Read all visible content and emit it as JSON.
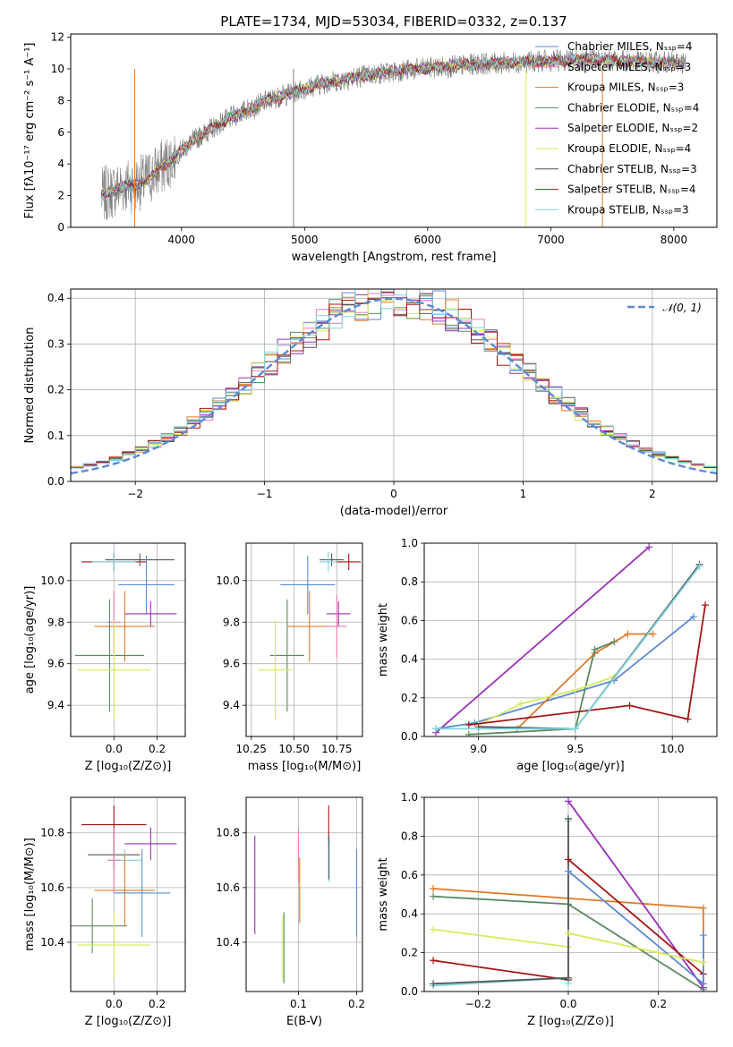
{
  "colors": {
    "chabrier_miles": "#5b8ad6",
    "salpeter_miles": "#f07ab2",
    "kroupa_miles": "#e07b29",
    "chabrier_elodie": "#5a8a62",
    "salpeter_elodie": "#9b30b8",
    "kroupa_elodie": "#d8ea5c",
    "chabrier_stelib": "#555555",
    "salpeter_stelib": "#a51515",
    "kroupa_stelib": "#7fd6e0",
    "spectrum_obs": "#808080",
    "normal": "#5b8ad6"
  },
  "chart_data": [
    {
      "id": "spectrum",
      "type": "line",
      "title": "PLATE=1734, MJD=53034, FIBERID=0332, z=0.137",
      "xlabel": "wavelength [Angstrom, rest frame]",
      "ylabel": "Flux [fλ10⁻¹⁷ erg cm⁻² s⁻¹ A⁻¹]",
      "xlim": [
        3100,
        8350
      ],
      "ylim": [
        0,
        12.2
      ],
      "xticks": [
        4000,
        5000,
        6000,
        7000,
        8000
      ],
      "yticks": [
        0,
        2,
        4,
        6,
        8,
        10,
        12
      ],
      "legend_position": "top-right",
      "continuum": [
        [
          3350,
          2.0
        ],
        [
          3500,
          2.5
        ],
        [
          3700,
          2.9
        ],
        [
          3900,
          4.2
        ],
        [
          4100,
          5.5
        ],
        [
          4300,
          6.5
        ],
        [
          4500,
          7.3
        ],
        [
          4700,
          8.0
        ],
        [
          4900,
          8.5
        ],
        [
          5100,
          9.0
        ],
        [
          5300,
          9.3
        ],
        [
          5500,
          9.6
        ],
        [
          5800,
          9.9
        ],
        [
          6100,
          10.1
        ],
        [
          6400,
          10.3
        ],
        [
          6700,
          10.4
        ],
        [
          7000,
          10.5
        ],
        [
          7300,
          10.6
        ],
        [
          7600,
          10.5
        ],
        [
          7900,
          10.4
        ],
        [
          8100,
          10.4
        ]
      ],
      "series": [
        {
          "name": "Chabrier MILES, Nₛₛₚ=4",
          "key": "chabrier_miles"
        },
        {
          "name": "Salpeter MILES, Nₛₛₚ=3",
          "key": "salpeter_miles"
        },
        {
          "name": "Kroupa MILES, Nₛₛₚ=3",
          "key": "kroupa_miles"
        },
        {
          "name": "Chabrier ELODIE, Nₛₛₚ=4",
          "key": "chabrier_elodie"
        },
        {
          "name": "Salpeter ELODIE, Nₛₛₚ=2",
          "key": "salpeter_elodie"
        },
        {
          "name": "Kroupa ELODIE, Nₛₛₚ=4",
          "key": "kroupa_elodie"
        },
        {
          "name": "Chabrier STELIB, Nₛₛₚ=3",
          "key": "chabrier_stelib"
        },
        {
          "name": "Salpeter STELIB, Nₛₛₚ=4",
          "key": "salpeter_stelib"
        },
        {
          "name": "Kroupa STELIB, Nₛₛₚ=3",
          "key": "kroupa_stelib"
        }
      ]
    },
    {
      "id": "residuals",
      "type": "histogram",
      "xlabel": "(data-model)/error",
      "ylabel": "Normed distribution",
      "xlim": [
        -2.5,
        2.5
      ],
      "ylim": [
        0,
        0.42
      ],
      "xticks": [
        -2,
        -1,
        0,
        1,
        2
      ],
      "xticklabels": [
        "−2",
        "−1",
        "0",
        "1",
        "2"
      ],
      "yticks": [
        0,
        0.1,
        0.2,
        0.3,
        0.4
      ],
      "yticklabels": [
        "0.0",
        "0.1",
        "0.2",
        "0.3",
        "0.4"
      ],
      "grid": true,
      "legend_position": "top-right",
      "legend_label": "𝒩(0, 1)",
      "normal_curve": {
        "mean": 0,
        "sigma": 1
      }
    },
    {
      "id": "z_age",
      "type": "errorbar",
      "xlabel": "Z [log₁₀(Z/Z⊙)]",
      "ylabel": "age  [log₁₀(age/yr)]",
      "xlim": [
        -0.2,
        0.33
      ],
      "ylim": [
        9.25,
        10.18
      ],
      "xticks": [
        0.0,
        0.2
      ],
      "xticklabels": [
        "0.0",
        "0.2"
      ],
      "yticks": [
        9.4,
        9.6,
        9.8,
        10.0
      ],
      "yticklabels": [
        "9.4",
        "9.6",
        "9.8",
        "10.0"
      ],
      "points": [
        {
          "key": "salpeter_stelib",
          "x": 0.0,
          "y": 10.09,
          "xerr": 0.15,
          "yerr": 0.04
        },
        {
          "key": "chabrier_stelib",
          "x": 0.12,
          "y": 10.1,
          "xerr": 0.16,
          "yerr": 0.03
        },
        {
          "key": "kroupa_stelib",
          "x": 0.0,
          "y": 10.09,
          "xerr": 0.1,
          "yerr": 0.05
        },
        {
          "key": "chabrier_miles",
          "x": 0.15,
          "y": 9.98,
          "xerr": 0.13,
          "yerr": 0.14
        },
        {
          "key": "kroupa_miles",
          "x": 0.05,
          "y": 9.78,
          "xerr": 0.14,
          "yerr": 0.17
        },
        {
          "key": "salpeter_elodie",
          "x": 0.17,
          "y": 9.84,
          "xerr": 0.12,
          "yerr": 0.06
        },
        {
          "key": "salpeter_miles",
          "x": 0.0,
          "y": 9.8,
          "xerr": 0.03,
          "yerr": 0.15
        },
        {
          "key": "chabrier_elodie",
          "x": -0.02,
          "y": 9.64,
          "xerr": 0.16,
          "yerr": 0.27
        },
        {
          "key": "kroupa_elodie",
          "x": 0.0,
          "y": 9.57,
          "xerr": 0.17,
          "yerr": 0.24
        }
      ]
    },
    {
      "id": "mass_age",
      "type": "errorbar",
      "xlabel": "mass [log₁₀(M/M⊙)]",
      "ylabel": "",
      "xlim": [
        10.22,
        10.9
      ],
      "ylim": [
        9.25,
        10.18
      ],
      "xticks": [
        10.25,
        10.5,
        10.75
      ],
      "xticklabels": [
        "10.25",
        "10.50",
        "10.75"
      ],
      "yticks": [
        9.4,
        9.6,
        9.8,
        10.0
      ],
      "yticklabels": [
        "9.4",
        "9.6",
        "9.8",
        "10.0"
      ],
      "points": [
        {
          "key": "salpeter_stelib",
          "x": 10.82,
          "y": 10.09,
          "xerr": 0.07,
          "yerr": 0.04
        },
        {
          "key": "chabrier_stelib",
          "x": 10.72,
          "y": 10.1,
          "xerr": 0.07,
          "yerr": 0.03
        },
        {
          "key": "kroupa_stelib",
          "x": 10.7,
          "y": 10.09,
          "xerr": 0.05,
          "yerr": 0.05
        },
        {
          "key": "chabrier_miles",
          "x": 10.58,
          "y": 9.98,
          "xerr": 0.16,
          "yerr": 0.14
        },
        {
          "key": "kroupa_miles",
          "x": 10.59,
          "y": 9.78,
          "xerr": 0.13,
          "yerr": 0.17
        },
        {
          "key": "salpeter_elodie",
          "x": 10.76,
          "y": 9.84,
          "xerr": 0.07,
          "yerr": 0.06
        },
        {
          "key": "salpeter_miles",
          "x": 10.75,
          "y": 9.78,
          "xerr": 0.06,
          "yerr": 0.15
        },
        {
          "key": "chabrier_elodie",
          "x": 10.46,
          "y": 9.64,
          "xerr": 0.1,
          "yerr": 0.27
        },
        {
          "key": "kroupa_elodie",
          "x": 10.39,
          "y": 9.57,
          "xerr": 0.1,
          "yerr": 0.24
        }
      ]
    },
    {
      "id": "age_weight",
      "type": "line",
      "xlabel": "age  [log₁₀(age/yr)]",
      "ylabel": "mass weight",
      "xlim": [
        8.72,
        10.23
      ],
      "ylim": [
        0,
        1.0
      ],
      "xticks": [
        9.0,
        9.5,
        10.0
      ],
      "xticklabels": [
        "9.0",
        "9.5",
        "10.0"
      ],
      "yticks": [
        0,
        0.2,
        0.4,
        0.6,
        0.8,
        1.0
      ],
      "yticklabels": [
        "0.0",
        "0.2",
        "0.4",
        "0.6",
        "0.8",
        "1.0"
      ],
      "grid": true,
      "series": [
        {
          "key": "salpeter_elodie",
          "points": [
            [
              8.78,
              0.02
            ],
            [
              9.88,
              0.98
            ]
          ]
        },
        {
          "key": "chabrier_miles",
          "points": [
            [
              8.78,
              0.04
            ],
            [
              8.98,
              0.07
            ],
            [
              9.7,
              0.29
            ],
            [
              10.11,
              0.62
            ]
          ]
        },
        {
          "key": "kroupa_miles",
          "points": [
            [
              9.2,
              0.04
            ],
            [
              9.6,
              0.43
            ],
            [
              9.77,
              0.53
            ],
            [
              9.9,
              0.53
            ]
          ]
        },
        {
          "key": "chabrier_elodie",
          "points": [
            [
              8.95,
              0.01
            ],
            [
              9.5,
              0.04
            ],
            [
              9.6,
              0.45
            ],
            [
              9.7,
              0.49
            ]
          ]
        },
        {
          "key": "kroupa_elodie",
          "points": [
            [
              9.0,
              0.06
            ],
            [
              9.22,
              0.17
            ],
            [
              9.5,
              0.24
            ],
            [
              9.7,
              0.31
            ]
          ]
        },
        {
          "key": "salpeter_stelib",
          "points": [
            [
              8.95,
              0.06
            ],
            [
              9.78,
              0.16
            ],
            [
              10.08,
              0.09
            ],
            [
              10.17,
              0.68
            ]
          ]
        },
        {
          "key": "chabrier_stelib",
          "points": [
            [
              9.0,
              0.05
            ],
            [
              9.5,
              0.04
            ],
            [
              10.14,
              0.89
            ]
          ]
        },
        {
          "key": "kroupa_stelib",
          "points": [
            [
              8.78,
              0.04
            ],
            [
              9.5,
              0.04
            ],
            [
              10.14,
              0.88
            ]
          ]
        }
      ]
    },
    {
      "id": "z_mass",
      "type": "errorbar",
      "xlabel": "Z [log₁₀(Z/Z⊙)]",
      "ylabel": "mass [log₁₀(M/M⊙)]",
      "xlim": [
        -0.2,
        0.33
      ],
      "ylim": [
        10.22,
        10.93
      ],
      "xticks": [
        0.0,
        0.2
      ],
      "xticklabels": [
        "0.0",
        "0.2"
      ],
      "yticks": [
        10.4,
        10.6,
        10.8
      ],
      "yticklabels": [
        "10.4",
        "10.6",
        "10.8"
      ],
      "points": [
        {
          "key": "salpeter_stelib",
          "x": 0.0,
          "y": 10.83,
          "xerr": 0.15,
          "yerr": 0.07
        },
        {
          "key": "salpeter_elodie",
          "x": 0.17,
          "y": 10.76,
          "xerr": 0.12,
          "yerr": 0.06
        },
        {
          "key": "chabrier_stelib",
          "x": 0.0,
          "y": 10.72,
          "xerr": 0.12,
          "yerr": 0.05
        },
        {
          "key": "kroupa_stelib",
          "x": 0.05,
          "y": 10.7,
          "xerr": 0.08,
          "yerr": 0.04
        },
        {
          "key": "chabrier_miles",
          "x": 0.13,
          "y": 10.58,
          "xerr": 0.13,
          "yerr": 0.16
        },
        {
          "key": "kroupa_miles",
          "x": 0.05,
          "y": 10.59,
          "xerr": 0.14,
          "yerr": 0.13
        },
        {
          "key": "salpeter_miles",
          "x": 0.0,
          "y": 10.7,
          "xerr": 0.03,
          "yerr": 0.12
        },
        {
          "key": "chabrier_elodie",
          "x": -0.1,
          "y": 10.46,
          "xerr": 0.16,
          "yerr": 0.1
        },
        {
          "key": "kroupa_elodie",
          "x": 0.0,
          "y": 10.39,
          "xerr": 0.17,
          "yerr": 0.12
        }
      ]
    },
    {
      "id": "ebv_mass",
      "type": "errorbar",
      "xlabel": "E(B-V)",
      "ylabel": "",
      "xlim": [
        0.01,
        0.21
      ],
      "ylim": [
        10.22,
        10.93
      ],
      "xticks": [
        0.1,
        0.2
      ],
      "xticklabels": [
        "0.1",
        "0.2"
      ],
      "yticks": [
        10.4,
        10.6,
        10.8
      ],
      "yticklabels": [
        "10.4",
        "10.6",
        "10.8"
      ],
      "points": [
        {
          "key": "salpeter_elodie",
          "x": 0.025,
          "y": 10.61,
          "xerr": 0,
          "yerr": 0.18
        },
        {
          "key": "chabrier_elodie",
          "x": 0.075,
          "y": 10.38,
          "xerr": 0,
          "yerr": 0.13
        },
        {
          "key": "kroupa_elodie",
          "x": 0.073,
          "y": 10.38,
          "xerr": 0,
          "yerr": 0.12
        },
        {
          "key": "salpeter_miles",
          "x": 0.1,
          "y": 10.72,
          "xerr": 0,
          "yerr": 0.1
        },
        {
          "key": "kroupa_miles",
          "x": 0.102,
          "y": 10.59,
          "xerr": 0,
          "yerr": 0.12
        },
        {
          "key": "salpeter_stelib",
          "x": 0.152,
          "y": 10.83,
          "xerr": 0,
          "yerr": 0.07
        },
        {
          "key": "kroupa_stelib",
          "x": 0.153,
          "y": 10.7,
          "xerr": 0,
          "yerr": 0.08
        },
        {
          "key": "chabrier_stelib",
          "x": 0.152,
          "y": 10.71,
          "xerr": 0,
          "yerr": 0.08
        },
        {
          "key": "chabrier_miles",
          "x": 0.2,
          "y": 10.58,
          "xerr": 0,
          "yerr": 0.16
        }
      ]
    },
    {
      "id": "z_weight",
      "type": "line",
      "xlabel": "Z [log₁₀(Z/Z⊙)]",
      "ylabel": "mass weight",
      "xlim": [
        -0.32,
        0.33
      ],
      "ylim": [
        0,
        1.0
      ],
      "xticks": [
        -0.2,
        0.0,
        0.2
      ],
      "xticklabels": [
        "−0.2",
        "0.0",
        "0.2"
      ],
      "yticks": [
        0,
        0.2,
        0.4,
        0.6,
        0.8,
        1.0
      ],
      "yticklabels": [
        "0.0",
        "0.2",
        "0.4",
        "0.6",
        "0.8",
        "1.0"
      ],
      "grid": true,
      "series": [
        {
          "key": "kroupa_miles",
          "points": [
            [
              -0.3,
              0.53
            ],
            [
              0.3,
              0.43
            ],
            [
              0.3,
              0.04
            ]
          ]
        },
        {
          "key": "chabrier_elodie",
          "points": [
            [
              -0.3,
              0.49
            ],
            [
              0.0,
              0.45
            ],
            [
              0.3,
              0.01
            ]
          ]
        },
        {
          "key": "kroupa_elodie",
          "points": [
            [
              -0.3,
              0.32
            ],
            [
              0.0,
              0.23
            ]
          ]
        },
        {
          "key": "salpeter_stelib",
          "points": [
            [
              -0.3,
              0.16
            ],
            [
              0.0,
              0.06
            ]
          ]
        },
        {
          "key": "kroupa_stelib",
          "points": [
            [
              -0.3,
              0.03
            ],
            [
              0.0,
              0.07
            ],
            [
              0.0,
              0.88
            ],
            [
              0.0,
              0.04
            ]
          ]
        },
        {
          "key": "chabrier_stelib",
          "points": [
            [
              -0.3,
              0.04
            ],
            [
              0.0,
              0.07
            ],
            [
              0.0,
              0.89
            ]
          ]
        },
        {
          "key": "salpeter_elodie",
          "points": [
            [
              0.0,
              0.98
            ],
            [
              0.3,
              0.02
            ]
          ]
        },
        {
          "key": "salpeter_stelib",
          "points": [
            [
              0.0,
              0.68
            ],
            [
              0.3,
              0.09
            ]
          ]
        },
        {
          "key": "chabrier_miles",
          "points": [
            [
              0.0,
              0.62
            ],
            [
              0.3,
              0.04
            ],
            [
              0.3,
              0.29
            ]
          ]
        },
        {
          "key": "kroupa_elodie",
          "points": [
            [
              0.0,
              0.3
            ],
            [
              0.3,
              0.15
            ]
          ]
        }
      ]
    }
  ]
}
